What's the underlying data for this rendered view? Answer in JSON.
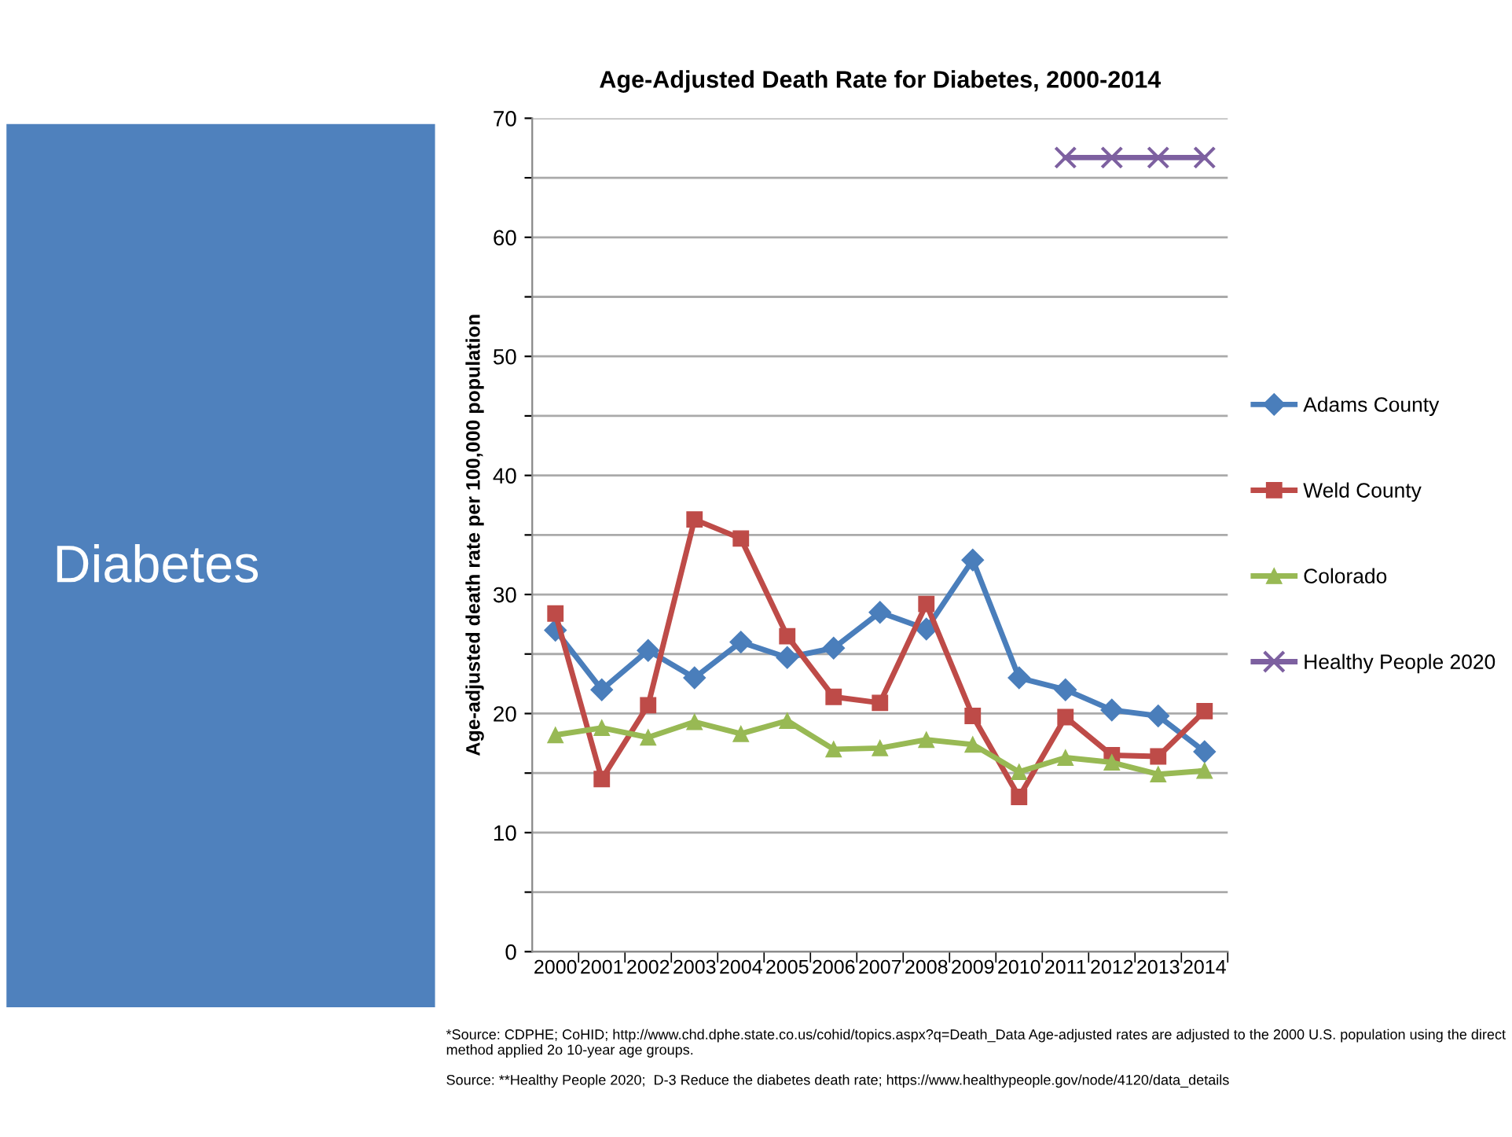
{
  "chart_data": {
    "type": "line",
    "title": "Age-Adjusted Death Rate for Diabetes, 2000-2014",
    "ylabel": "Age-adjusted death rate per 100,000 population",
    "categories": [
      "2000",
      "2001",
      "2002",
      "2003",
      "2004",
      "2005",
      "2006",
      "2007",
      "2008",
      "2009",
      "2010",
      "2011",
      "2012",
      "2013",
      "2014"
    ],
    "series": [
      {
        "name": "Adams County",
        "color": "#4a7ebb",
        "marker": "diamond",
        "values": [
          27.0,
          22.0,
          25.3,
          23.0,
          26.0,
          24.7,
          25.5,
          28.5,
          27.1,
          32.9,
          23.0,
          22.0,
          20.3,
          19.8,
          16.8
        ]
      },
      {
        "name": "Weld County",
        "color": "#be4b48",
        "marker": "square",
        "values": [
          28.4,
          14.5,
          20.7,
          36.3,
          34.7,
          26.5,
          21.4,
          20.9,
          29.2,
          19.8,
          13.0,
          19.7,
          16.5,
          16.4,
          20.2
        ]
      },
      {
        "name": "Colorado",
        "color": "#98b954",
        "marker": "triangle",
        "values": [
          18.2,
          18.8,
          18.0,
          19.3,
          18.3,
          19.4,
          17.0,
          17.1,
          17.8,
          17.4,
          15.1,
          16.3,
          15.9,
          14.9,
          15.2
        ]
      },
      {
        "name": "Healthy People 2020",
        "color": "#7d60a0",
        "marker": "cross",
        "values": [
          null,
          null,
          null,
          null,
          null,
          null,
          null,
          null,
          null,
          null,
          null,
          66.7,
          66.7,
          66.7,
          66.7
        ]
      }
    ],
    "ylim": [
      0,
      70
    ],
    "yticks": [
      0,
      {
        "value": 5,
        "label": null
      },
      10,
      {
        "value": 15,
        "label": null
      },
      20,
      {
        "value": 25,
        "label": null
      },
      30,
      {
        "value": 35,
        "label": null
      },
      40,
      {
        "value": 45,
        "label": null
      },
      50,
      {
        "value": 55,
        "label": null
      },
      60,
      {
        "value": 65,
        "label": null
      },
      70
    ],
    "grid": "y",
    "legend": "right",
    "line_style": "solid",
    "annotations": [
      "Diabetes",
      "*Source: CDPHE; CoHID; http://www.chd.dphe.state.co.us/cohid/topics.aspx?q=Death_Data Age-adjusted rates are adjusted to the 2000 U.S. population using the direct method applied 2o 10-year age groups.",
      "Source: **Healthy People 2020;  D-3 Reduce the diabetes death rate; https://www.healthypeople.gov/node/4120/data_details"
    ]
  }
}
